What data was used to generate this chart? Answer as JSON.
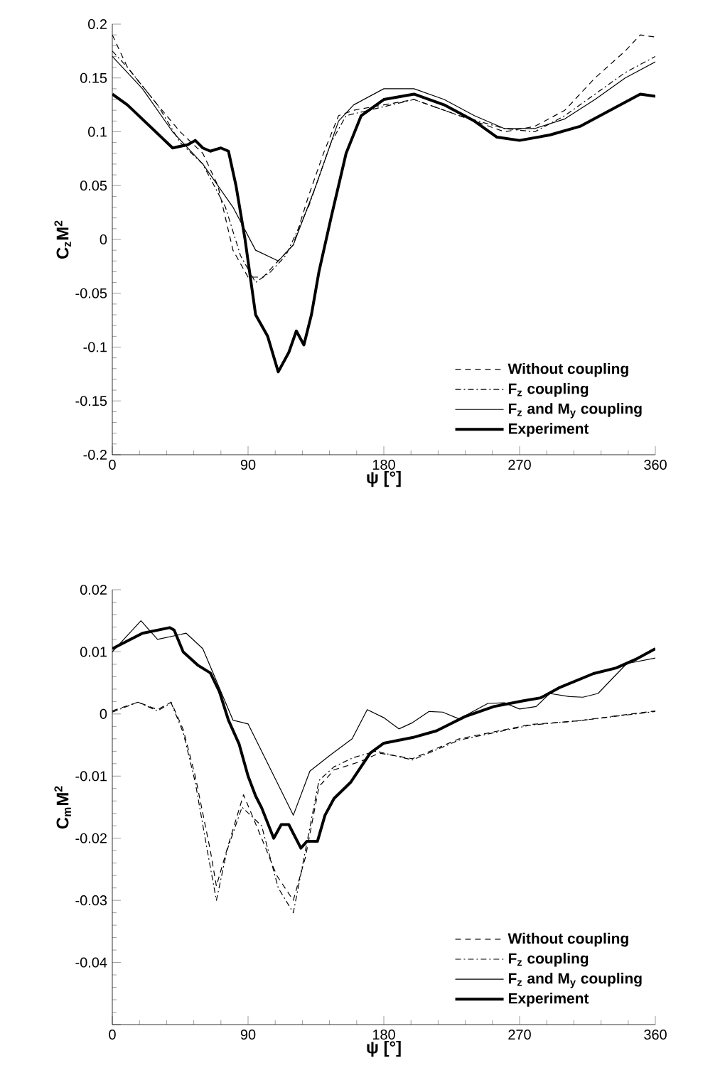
{
  "chart_data": [
    {
      "type": "line",
      "ylabel": "C$_{z}$M$^{2}$",
      "xlabel": "ψ [°]",
      "xlim": [
        0,
        360
      ],
      "xticks": [
        0,
        90,
        180,
        270,
        360
      ],
      "ylim": [
        -0.2,
        0.2
      ],
      "yticks": [
        -0.2,
        -0.15,
        -0.1,
        -0.05,
        0,
        0.05,
        0.1,
        0.15,
        0.2
      ],
      "legend": "bottom right",
      "grid": false,
      "series": [
        {
          "name": "Without coupling",
          "color": "#000000",
          "line_style": "dashed",
          "x": [
            0,
            10,
            30,
            45,
            60,
            70,
            80,
            90,
            100,
            110,
            120,
            130,
            140,
            150,
            160,
            180,
            200,
            220,
            240,
            260,
            280,
            300,
            320,
            340,
            350,
            360
          ],
          "values": [
            0.19,
            0.16,
            0.125,
            0.1,
            0.08,
            0.05,
            -0.01,
            -0.035,
            -0.035,
            -0.02,
            -0.005,
            0.04,
            0.08,
            0.115,
            0.12,
            0.125,
            0.13,
            0.12,
            0.11,
            0.1,
            0.105,
            0.12,
            0.15,
            0.175,
            0.19,
            0.188
          ]
        },
        {
          "name": "F$_{z}$ coupling",
          "color": "#000000",
          "line_style": "dashdot",
          "x": [
            0,
            10,
            30,
            45,
            60,
            75,
            85,
            95,
            105,
            115,
            130,
            145,
            155,
            170,
            200,
            230,
            260,
            280,
            300,
            320,
            340,
            360
          ],
          "values": [
            0.175,
            0.16,
            0.125,
            0.09,
            0.07,
            0.03,
            -0.015,
            -0.04,
            -0.03,
            -0.015,
            0.03,
            0.09,
            0.115,
            0.12,
            0.13,
            0.115,
            0.103,
            0.1,
            0.115,
            0.135,
            0.155,
            0.17
          ]
        },
        {
          "name": "F$_{z}$ and M$_{y}$ coupling",
          "color": "#000000",
          "line_style": "solid",
          "x": [
            0,
            20,
            40,
            60,
            80,
            95,
            110,
            120,
            135,
            150,
            160,
            180,
            200,
            220,
            240,
            260,
            280,
            300,
            320,
            340,
            360
          ],
          "values": [
            0.17,
            0.14,
            0.1,
            0.07,
            0.03,
            -0.01,
            -0.02,
            -0.005,
            0.05,
            0.11,
            0.125,
            0.14,
            0.14,
            0.13,
            0.115,
            0.103,
            0.103,
            0.112,
            0.13,
            0.15,
            0.165
          ]
        },
        {
          "name": "Experiment",
          "color": "#000000",
          "line_style": "solid",
          "x": [
            0,
            10,
            25,
            40,
            50,
            55,
            60,
            65,
            72,
            77,
            82,
            88,
            95,
            103,
            110,
            117,
            122,
            127,
            132,
            137,
            145,
            155,
            165,
            180,
            200,
            220,
            240,
            255,
            270,
            290,
            310,
            330,
            350,
            360
          ],
          "values": [
            0.135,
            0.125,
            0.105,
            0.085,
            0.088,
            0.092,
            0.085,
            0.082,
            0.085,
            0.082,
            0.05,
            0.0,
            -0.07,
            -0.09,
            -0.123,
            -0.105,
            -0.085,
            -0.098,
            -0.07,
            -0.03,
            0.02,
            0.08,
            0.115,
            0.13,
            0.135,
            0.125,
            0.11,
            0.095,
            0.092,
            0.097,
            0.105,
            0.12,
            0.135,
            0.133
          ]
        }
      ]
    },
    {
      "type": "line",
      "ylabel": "C$_{m}$M$^{2}$",
      "xlabel": "ψ [°]",
      "xlim": [
        0,
        360
      ],
      "xticks": [
        0,
        90,
        180,
        270,
        360
      ],
      "ylim": [
        -0.05,
        0.02
      ],
      "yticks": [
        {
          "value": -0.05,
          "label": null
        },
        -0.04,
        -0.03,
        -0.02,
        -0.01,
        0,
        0.01,
        0.02
      ],
      "legend": "bottom right",
      "grid": false,
      "series": [
        {
          "name": "Without coupling",
          "color": "#000000",
          "line_style": "dashed",
          "x": [
            0,
            17,
            30,
            39,
            47,
            55,
            65,
            69,
            77,
            87,
            99,
            109,
            120,
            128,
            137,
            147,
            164,
            177,
            199,
            230,
            277,
            309,
            360
          ],
          "values": [
            0.0005,
            0.0019,
            0.0007,
            0.0019,
            -0.0025,
            -0.01,
            -0.022,
            -0.0277,
            -0.021,
            -0.013,
            -0.02,
            -0.026,
            -0.03,
            -0.0231,
            -0.0117,
            -0.009,
            -0.0077,
            -0.0063,
            -0.0072,
            -0.004,
            -0.0017,
            -0.0011,
            0.0005
          ]
        },
        {
          "name": "F$_{z}$ coupling",
          "color": "#000000",
          "line_style": "dashdot",
          "x": [
            0,
            17,
            30,
            39,
            47,
            55,
            63,
            69,
            76,
            86,
            99,
            110,
            120,
            128,
            137,
            147,
            160,
            175,
            199,
            230,
            277,
            309,
            360
          ],
          "values": [
            0.0003,
            0.0019,
            0.0005,
            0.0018,
            -0.003,
            -0.011,
            -0.022,
            -0.03,
            -0.022,
            -0.015,
            -0.018,
            -0.028,
            -0.032,
            -0.022,
            -0.0107,
            -0.0085,
            -0.007,
            -0.006,
            -0.0074,
            -0.0042,
            -0.0018,
            -0.0011,
            0.0004
          ]
        },
        {
          "name": "F$_{z}$ and M$_{y}$ coupling",
          "color": "#000000",
          "line_style": "solid",
          "x": [
            0,
            19,
            30,
            49,
            60,
            80,
            90,
            120,
            131,
            144,
            159,
            169,
            180,
            190,
            199,
            210,
            219,
            230,
            249,
            260,
            270,
            281,
            290,
            303,
            312,
            322,
            341,
            360
          ],
          "values": [
            0.01,
            0.015,
            0.012,
            0.013,
            0.0105,
            -0.001,
            -0.0016,
            -0.0163,
            -0.0092,
            -0.0067,
            -0.004,
            0.0007,
            -0.0006,
            -0.0024,
            -0.0014,
            0.0004,
            0.0003,
            -0.0008,
            0.0017,
            0.0018,
            0.0008,
            0.0012,
            0.0033,
            0.0028,
            0.0027,
            0.0033,
            0.0081,
            0.009
          ]
        },
        {
          "name": "Experiment",
          "color": "#000000",
          "line_style": "solid",
          "x": [
            0,
            20,
            38,
            41,
            47,
            57,
            65,
            71,
            77,
            84,
            90,
            95,
            99,
            107,
            112,
            117,
            125,
            129,
            136,
            141,
            147,
            158,
            171,
            180,
            199,
            215,
            234,
            253,
            272,
            284,
            296,
            319,
            334,
            347,
            360
          ],
          "values": [
            0.0105,
            0.013,
            0.0139,
            0.0135,
            0.01,
            0.0078,
            0.0066,
            0.0036,
            -0.001,
            -0.0048,
            -0.01,
            -0.0132,
            -0.0151,
            -0.02,
            -0.0178,
            -0.0178,
            -0.0216,
            -0.0205,
            -0.0205,
            -0.0163,
            -0.0136,
            -0.011,
            -0.0063,
            -0.0047,
            -0.0038,
            -0.0027,
            -0.0004,
            0.0012,
            0.0021,
            0.0026,
            0.0042,
            0.0065,
            0.0074,
            0.0088,
            0.0105
          ]
        }
      ]
    }
  ]
}
